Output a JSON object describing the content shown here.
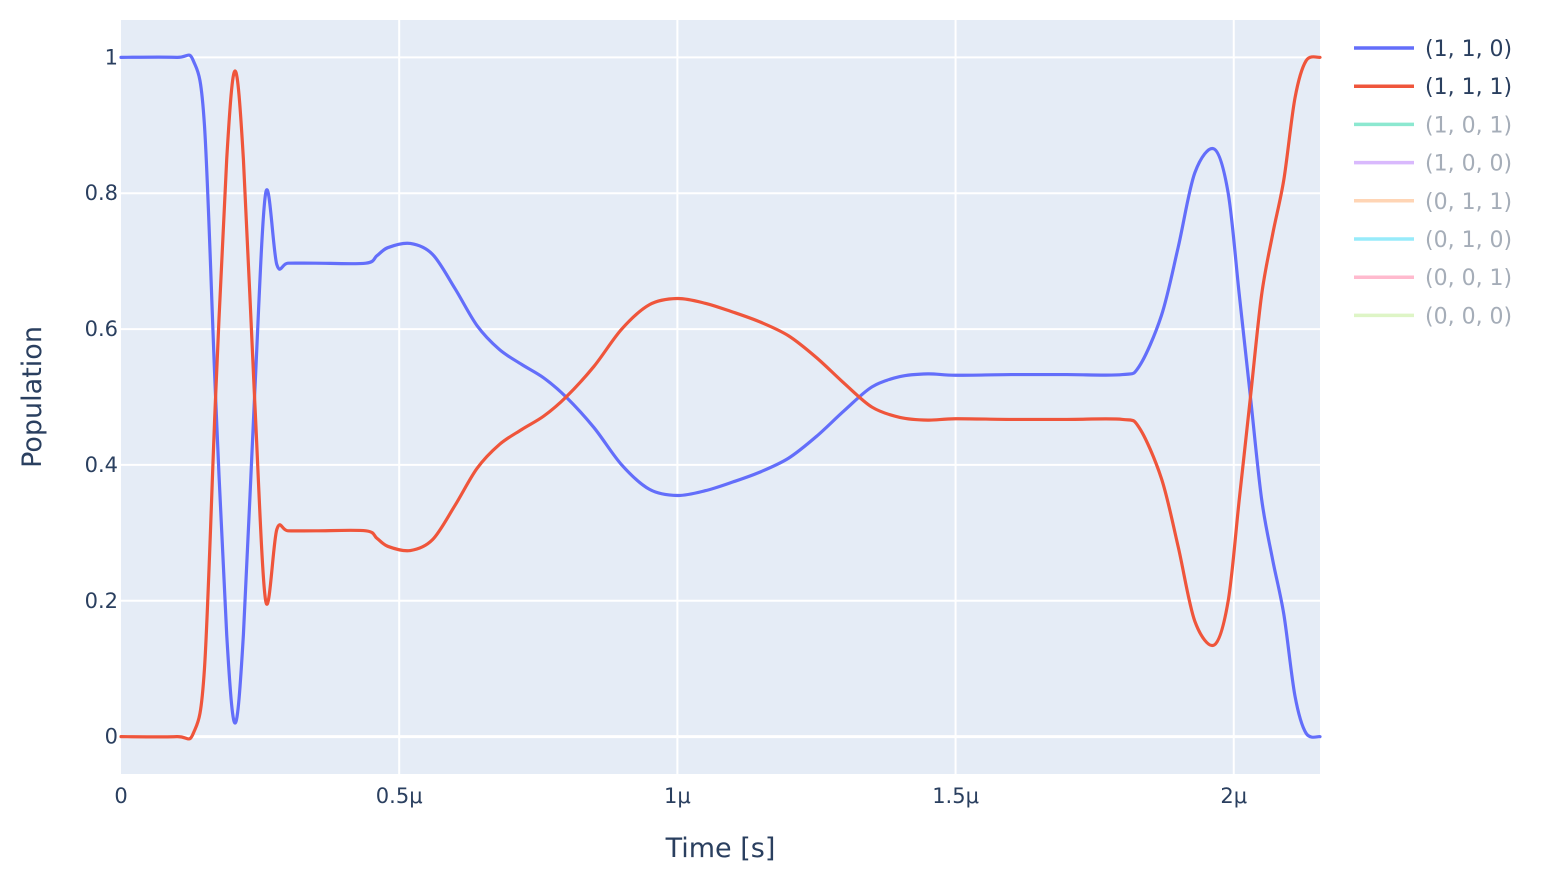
{
  "chart_data": {
    "type": "line",
    "title": "",
    "xlabel": "Time [s]",
    "ylabel": "Population",
    "xlim": [
      0,
      2.155
    ],
    "ylim": [
      -0.055,
      1.055
    ],
    "x_unit": "μs",
    "x_ticks": [
      {
        "value": 0,
        "label": "0"
      },
      {
        "value": 0.5,
        "label": "0.5μ"
      },
      {
        "value": 1,
        "label": "1μ"
      },
      {
        "value": 1.5,
        "label": "1.5μ"
      },
      {
        "value": 2,
        "label": "2μ"
      }
    ],
    "y_ticks": [
      {
        "value": 0,
        "label": "0"
      },
      {
        "value": 0.2,
        "label": "0.2"
      },
      {
        "value": 0.4,
        "label": "0.4"
      },
      {
        "value": 0.6,
        "label": "0.6"
      },
      {
        "value": 0.8,
        "label": "0.8"
      },
      {
        "value": 1,
        "label": "1"
      }
    ],
    "grid": true,
    "legend_position": "right",
    "plot_background": "#e5ecf6",
    "grid_color": "#ffffff",
    "text_color": "#2a3f5f",
    "hidden_legend_text_color": "#a5adb8",
    "series": [
      {
        "name": "(1, 1, 0)",
        "color": "#636efa",
        "visible": true,
        "x": [
          0,
          0.1,
          0.13,
          0.15,
          0.17,
          0.19,
          0.205,
          0.22,
          0.24,
          0.26,
          0.28,
          0.3,
          0.35,
          0.44,
          0.46,
          0.48,
          0.52,
          0.56,
          0.6,
          0.64,
          0.68,
          0.72,
          0.76,
          0.8,
          0.85,
          0.9,
          0.95,
          1.0,
          1.05,
          1.1,
          1.15,
          1.2,
          1.25,
          1.3,
          1.35,
          1.4,
          1.45,
          1.5,
          1.6,
          1.7,
          1.8,
          1.83,
          1.87,
          1.9,
          1.93,
          1.965,
          1.99,
          2.01,
          2.03,
          2.05,
          2.07,
          2.09,
          2.11,
          2.13,
          2.155
        ],
        "y": [
          1.0,
          1.0,
          0.995,
          0.9,
          0.5,
          0.15,
          0.02,
          0.15,
          0.5,
          0.8,
          0.695,
          0.697,
          0.697,
          0.697,
          0.708,
          0.72,
          0.726,
          0.71,
          0.66,
          0.605,
          0.57,
          0.548,
          0.528,
          0.5,
          0.455,
          0.4,
          0.364,
          0.355,
          0.362,
          0.375,
          0.39,
          0.41,
          0.442,
          0.48,
          0.515,
          0.53,
          0.534,
          0.532,
          0.533,
          0.533,
          0.533,
          0.545,
          0.62,
          0.72,
          0.83,
          0.865,
          0.8,
          0.65,
          0.5,
          0.35,
          0.26,
          0.18,
          0.06,
          0.005,
          0.0
        ]
      },
      {
        "name": "(1, 1, 1)",
        "color": "#ef553b",
        "visible": true,
        "x": [
          0,
          0.1,
          0.13,
          0.15,
          0.17,
          0.19,
          0.205,
          0.22,
          0.24,
          0.26,
          0.28,
          0.3,
          0.35,
          0.44,
          0.46,
          0.48,
          0.52,
          0.56,
          0.6,
          0.64,
          0.68,
          0.72,
          0.76,
          0.8,
          0.85,
          0.9,
          0.95,
          1.0,
          1.05,
          1.1,
          1.15,
          1.2,
          1.25,
          1.3,
          1.35,
          1.4,
          1.45,
          1.5,
          1.6,
          1.7,
          1.8,
          1.83,
          1.87,
          1.9,
          1.93,
          1.965,
          1.99,
          2.01,
          2.03,
          2.05,
          2.07,
          2.09,
          2.11,
          2.13,
          2.155
        ],
        "y": [
          0.0,
          0.0,
          0.005,
          0.1,
          0.5,
          0.85,
          0.98,
          0.85,
          0.5,
          0.2,
          0.305,
          0.303,
          0.303,
          0.303,
          0.292,
          0.28,
          0.274,
          0.29,
          0.34,
          0.395,
          0.43,
          0.452,
          0.472,
          0.5,
          0.545,
          0.6,
          0.636,
          0.645,
          0.638,
          0.625,
          0.61,
          0.59,
          0.558,
          0.52,
          0.485,
          0.47,
          0.466,
          0.468,
          0.467,
          0.467,
          0.467,
          0.455,
          0.38,
          0.28,
          0.17,
          0.135,
          0.2,
          0.35,
          0.5,
          0.65,
          0.74,
          0.82,
          0.94,
          0.995,
          1.0
        ]
      },
      {
        "name": "(1, 0, 1)",
        "color": "#00cc96",
        "visible": false
      },
      {
        "name": "(1, 0, 0)",
        "color": "#ab63fa",
        "visible": false
      },
      {
        "name": "(0, 1, 1)",
        "color": "#ffa15a",
        "visible": false
      },
      {
        "name": "(0, 1, 0)",
        "color": "#19d3f3",
        "visible": false
      },
      {
        "name": "(0, 0, 1)",
        "color": "#ff6692",
        "visible": false
      },
      {
        "name": "(0, 0, 0)",
        "color": "#b6e880",
        "visible": false
      }
    ]
  }
}
